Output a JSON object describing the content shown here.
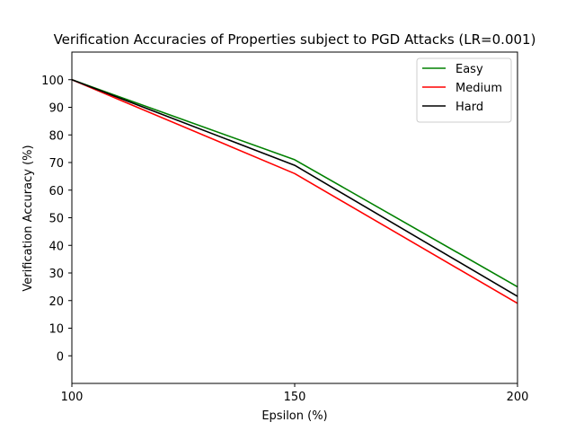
{
  "chart_data": {
    "type": "line",
    "title": "Verification Accuracies of Properties subject to PGD Attacks (LR=0.001)",
    "xlabel": "Epsilon (%)",
    "ylabel": "Verification Accuracy (%)",
    "x": [
      100,
      150,
      200
    ],
    "xlim": [
      100,
      200
    ],
    "ylim": [
      -10,
      110
    ],
    "xticks": [
      100,
      150,
      200
    ],
    "yticks": [
      0,
      10,
      20,
      30,
      40,
      50,
      60,
      70,
      80,
      90,
      100
    ],
    "grid": false,
    "legend_position": "top-right",
    "series": [
      {
        "name": "Easy",
        "color": "#008000",
        "values": [
          100,
          71,
          25
        ]
      },
      {
        "name": "Medium",
        "color": "#ff0000",
        "values": [
          100,
          66,
          19
        ]
      },
      {
        "name": "Hard",
        "color": "#000000",
        "values": [
          100,
          69,
          21.5
        ]
      }
    ]
  }
}
